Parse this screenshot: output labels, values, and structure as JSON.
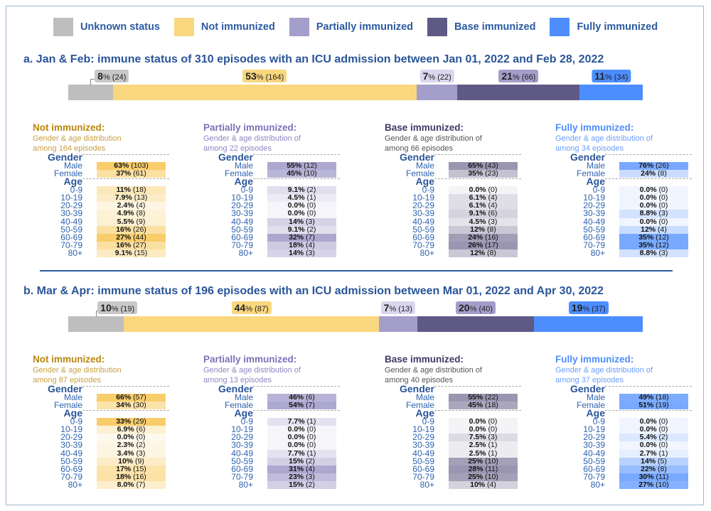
{
  "legend": [
    {
      "label": "Unknown status",
      "color": "#BEBEBE"
    },
    {
      "label": "Not immunized",
      "color": "#F9D77E"
    },
    {
      "label": "Partially immunized",
      "color": "#A49ECB"
    },
    {
      "label": "Base immunized",
      "color": "#5E5A85"
    },
    {
      "label": "Fully immunized",
      "color": "#4D8EFF"
    }
  ],
  "badge_colors": [
    "#C8C8C8",
    "#F9D77E",
    "#D9D6EE",
    "#A49ECB",
    "#4D8EFF"
  ],
  "table_colors": [
    {
      "title": "#B8860B",
      "sub": "#C9A040",
      "cell": "#F7C85A"
    },
    {
      "title": "#7B72B8",
      "sub": "#8E86C4",
      "cell": "#A49ECB"
    },
    {
      "title": "#3E3A68",
      "sub": "#555",
      "cell": "#8F8BA8"
    },
    {
      "title": "#4D8EFF",
      "sub": "#6A9EFF",
      "cell": "#6AA0FF"
    }
  ],
  "gender_header": "Gender",
  "age_header": "Age",
  "chart_data": [
    {
      "type": "table",
      "title": "a. Jan & Feb: immune status of 310 episodes with an ICU admission between Jan 01, 2022 and Feb 28, 2022",
      "segments": [
        {
          "status": "Unknown status",
          "pct": "8",
          "count": 24
        },
        {
          "status": "Not immunized",
          "pct": "53",
          "count": 164
        },
        {
          "status": "Partially immunized",
          "pct": "7",
          "count": 22
        },
        {
          "status": "Base immunized",
          "pct": "21",
          "count": 66
        },
        {
          "status": "Fully immunized",
          "pct": "11",
          "count": 34
        }
      ],
      "tables": [
        {
          "title": "Not immunized:",
          "sub1": "Gender & age distribution",
          "sub2": "among 164 episodes",
          "gender": [
            [
              "Male",
              "63%",
              103
            ],
            [
              "Female",
              "37%",
              61
            ]
          ],
          "age": [
            [
              "0-9",
              "11%",
              18
            ],
            [
              "10-19",
              "7.9%",
              13
            ],
            [
              "20-29",
              "2.4%",
              4
            ],
            [
              "30-39",
              "4.9%",
              8
            ],
            [
              "40-49",
              "5.5%",
              9
            ],
            [
              "50-59",
              "16%",
              26
            ],
            [
              "60-69",
              "27%",
              44
            ],
            [
              "70-79",
              "16%",
              27
            ],
            [
              "80+",
              "9.1%",
              15
            ]
          ]
        },
        {
          "title": "Partially immunized:",
          "sub1": "Gender & age distribution of",
          "sub2": "among 22 episodes",
          "gender": [
            [
              "Male",
              "55%",
              12
            ],
            [
              "Female",
              "45%",
              10
            ]
          ],
          "age": [
            [
              "0-9",
              "9.1%",
              2
            ],
            [
              "10-19",
              "4.5%",
              1
            ],
            [
              "20-29",
              "0.0%",
              0
            ],
            [
              "30-39",
              "0.0%",
              0
            ],
            [
              "40-49",
              "14%",
              3
            ],
            [
              "50-59",
              "9.1%",
              2
            ],
            [
              "60-69",
              "32%",
              7
            ],
            [
              "70-79",
              "18%",
              4
            ],
            [
              "80+",
              "14%",
              3
            ]
          ]
        },
        {
          "title": "Base immunized:",
          "sub1": "Gender & age distribution of",
          "sub2": "among 66 episodes",
          "gender": [
            [
              "Male",
              "65%",
              43
            ],
            [
              "Female",
              "35%",
              23
            ]
          ],
          "age": [
            [
              "0-9",
              "0.0%",
              0
            ],
            [
              "10-19",
              "6.1%",
              4
            ],
            [
              "20-29",
              "6.1%",
              4
            ],
            [
              "30-39",
              "9.1%",
              6
            ],
            [
              "40-49",
              "4.5%",
              3
            ],
            [
              "50-59",
              "12%",
              8
            ],
            [
              "60-69",
              "24%",
              16
            ],
            [
              "70-79",
              "26%",
              17
            ],
            [
              "80+",
              "12%",
              8
            ]
          ]
        },
        {
          "title": "Fully immunized:",
          "sub1": "Gender & age distribution of",
          "sub2": "among 34 episodes",
          "gender": [
            [
              "Male",
              "76%",
              26
            ],
            [
              "Female",
              "24%",
              8
            ]
          ],
          "age": [
            [
              "0-9",
              "0.0%",
              0
            ],
            [
              "10-19",
              "0.0%",
              0
            ],
            [
              "20-29",
              "0.0%",
              0
            ],
            [
              "30-39",
              "8.8%",
              3
            ],
            [
              "40-49",
              "0.0%",
              0
            ],
            [
              "50-59",
              "12%",
              4
            ],
            [
              "60-69",
              "35%",
              12
            ],
            [
              "70-79",
              "35%",
              12
            ],
            [
              "80+",
              "8.8%",
              3
            ]
          ]
        }
      ]
    },
    {
      "type": "table",
      "title": "b. Mar & Apr: immune status of 196 episodes with an ICU admission between Mar 01, 2022 and Apr 30, 2022",
      "segments": [
        {
          "status": "Unknown status",
          "pct": "10",
          "count": 19
        },
        {
          "status": "Not immunized",
          "pct": "44",
          "count": 87
        },
        {
          "status": "Partially immunized",
          "pct": "7",
          "count": 13
        },
        {
          "status": "Base immunized",
          "pct": "20",
          "count": 40
        },
        {
          "status": "Fully immunized",
          "pct": "19",
          "count": 37
        }
      ],
      "tables": [
        {
          "title": "Not immunized:",
          "sub1": "Gender & age distribution",
          "sub2": "among 87 episodes",
          "gender": [
            [
              "Male",
              "66%",
              57
            ],
            [
              "Female",
              "34%",
              30
            ]
          ],
          "age": [
            [
              "0-9",
              "33%",
              29
            ],
            [
              "10-19",
              "6.9%",
              6
            ],
            [
              "20-29",
              "0.0%",
              0
            ],
            [
              "30-39",
              "2.3%",
              2
            ],
            [
              "40-49",
              "3.4%",
              3
            ],
            [
              "50-59",
              "10%",
              9
            ],
            [
              "60-69",
              "17%",
              15
            ],
            [
              "70-79",
              "18%",
              16
            ],
            [
              "80+",
              "8.0%",
              7
            ]
          ]
        },
        {
          "title": "Partially immunized:",
          "sub1": "Gender & age distribution of",
          "sub2": "among 13 episodes",
          "gender": [
            [
              "Male",
              "46%",
              6
            ],
            [
              "Female",
              "54%",
              7
            ]
          ],
          "age": [
            [
              "0-9",
              "7.7%",
              1
            ],
            [
              "10-19",
              "0.0%",
              0
            ],
            [
              "20-29",
              "0.0%",
              0
            ],
            [
              "30-39",
              "0.0%",
              0
            ],
            [
              "40-49",
              "7.7%",
              1
            ],
            [
              "50-59",
              "15%",
              2
            ],
            [
              "60-69",
              "31%",
              4
            ],
            [
              "70-79",
              "23%",
              3
            ],
            [
              "80+",
              "15%",
              2
            ]
          ]
        },
        {
          "title": "Base immunized:",
          "sub1": "Gender & age distribution of",
          "sub2": "among 40 episodes",
          "gender": [
            [
              "Male",
              "55%",
              22
            ],
            [
              "Female",
              "45%",
              18
            ]
          ],
          "age": [
            [
              "0-9",
              "0.0%",
              0
            ],
            [
              "10-19",
              "0.0%",
              0
            ],
            [
              "20-29",
              "7.5%",
              3
            ],
            [
              "30-39",
              "2.5%",
              1
            ],
            [
              "40-49",
              "2.5%",
              1
            ],
            [
              "50-59",
              "25%",
              10
            ],
            [
              "60-69",
              "28%",
              11
            ],
            [
              "70-79",
              "25%",
              10
            ],
            [
              "80+",
              "10%",
              4
            ]
          ]
        },
        {
          "title": "Fully immunized:",
          "sub1": "Gender & age distribution of",
          "sub2": "among 37 episodes",
          "gender": [
            [
              "Male",
              "49%",
              18
            ],
            [
              "Female",
              "51%",
              19
            ]
          ],
          "age": [
            [
              "0-9",
              "0.0%",
              0
            ],
            [
              "10-19",
              "0.0%",
              0
            ],
            [
              "20-29",
              "5.4%",
              2
            ],
            [
              "30-39",
              "0.0%",
              0
            ],
            [
              "40-49",
              "2.7%",
              1
            ],
            [
              "50-59",
              "14%",
              5
            ],
            [
              "60-69",
              "22%",
              8
            ],
            [
              "70-79",
              "30%",
              11
            ],
            [
              "80+",
              "27%",
              10
            ]
          ]
        }
      ]
    }
  ]
}
